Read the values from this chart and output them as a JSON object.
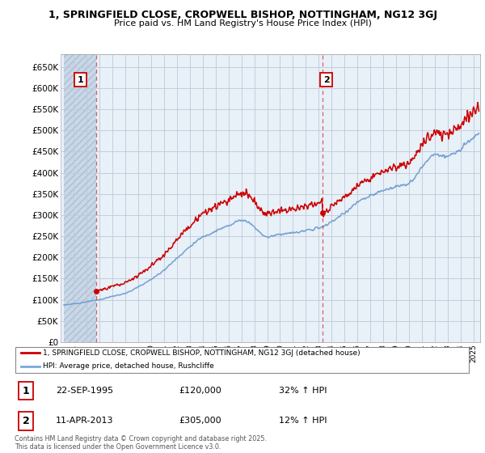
{
  "title1": "1, SPRINGFIELD CLOSE, CROPWELL BISHOP, NOTTINGHAM, NG12 3GJ",
  "title2": "Price paid vs. HM Land Registry's House Price Index (HPI)",
  "ylim": [
    0,
    680000
  ],
  "yticks": [
    0,
    50000,
    100000,
    150000,
    200000,
    250000,
    300000,
    350000,
    400000,
    450000,
    500000,
    550000,
    600000,
    650000
  ],
  "ytick_labels": [
    "£0",
    "£50K",
    "£100K",
    "£150K",
    "£200K",
    "£250K",
    "£300K",
    "£350K",
    "£400K",
    "£450K",
    "£500K",
    "£550K",
    "£600K",
    "£650K"
  ],
  "xlim_start": 1993.25,
  "xlim_end": 2025.5,
  "xtick_years": [
    1993,
    1994,
    1995,
    1996,
    1997,
    1998,
    1999,
    2000,
    2001,
    2002,
    2003,
    2004,
    2005,
    2006,
    2007,
    2008,
    2009,
    2010,
    2011,
    2012,
    2013,
    2014,
    2015,
    2016,
    2017,
    2018,
    2019,
    2020,
    2021,
    2022,
    2023,
    2024,
    2025
  ],
  "purchase1_x": 1995.73,
  "purchase1_y": 120000,
  "purchase2_x": 2013.28,
  "purchase2_y": 305000,
  "vline1_x": 1995.73,
  "vline2_x": 2013.28,
  "red_color": "#cc0000",
  "blue_color": "#6699cc",
  "bg_plot_color": "#e8f0f8",
  "hatch_color": "#c8d8e8",
  "grid_color": "#c0c8d8",
  "legend_label1": "1, SPRINGFIELD CLOSE, CROPWELL BISHOP, NOTTINGHAM, NG12 3GJ (detached house)",
  "legend_label2": "HPI: Average price, detached house, Rushcliffe",
  "table_row1": [
    "1",
    "22-SEP-1995",
    "£120,000",
    "32% ↑ HPI"
  ],
  "table_row2": [
    "2",
    "11-APR-2013",
    "£305,000",
    "12% ↑ HPI"
  ],
  "footer": "Contains HM Land Registry data © Crown copyright and database right 2025.\nThis data is licensed under the Open Government Licence v3.0."
}
